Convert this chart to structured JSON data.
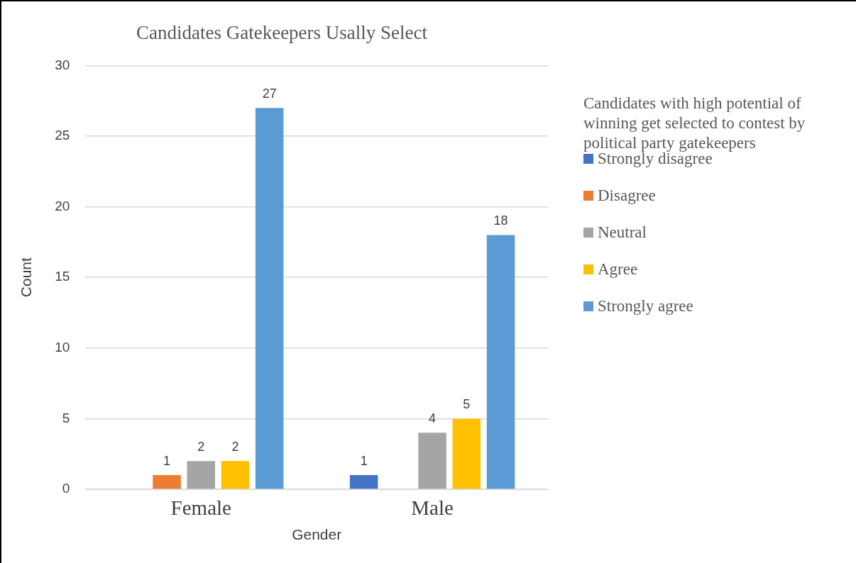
{
  "chart_data": {
    "type": "bar",
    "title": "Candidates Gatekeepers Usally Select",
    "xlabel": "Gender",
    "ylabel": "Count",
    "legend_title": "Candidates with high potential of winning get selected to contest by political party gatekeepers",
    "categories": [
      "Female",
      "Male"
    ],
    "series": [
      {
        "name": "Strongly disagree",
        "color": "#4472c4",
        "values": [
          null,
          1
        ]
      },
      {
        "name": "Disagree",
        "color": "#ed7d31",
        "values": [
          1,
          null
        ]
      },
      {
        "name": "Neutral",
        "color": "#a5a5a5",
        "values": [
          2,
          4
        ]
      },
      {
        "name": "Agree",
        "color": "#ffc000",
        "values": [
          2,
          5
        ]
      },
      {
        "name": "Strongly agree",
        "color": "#5b9bd5",
        "values": [
          27,
          18
        ]
      }
    ],
    "ylim": [
      0,
      30
    ],
    "yticks": [
      0,
      5,
      10,
      15,
      20,
      25,
      30
    ],
    "grid": "y",
    "legend": "right",
    "data_labels": true
  }
}
